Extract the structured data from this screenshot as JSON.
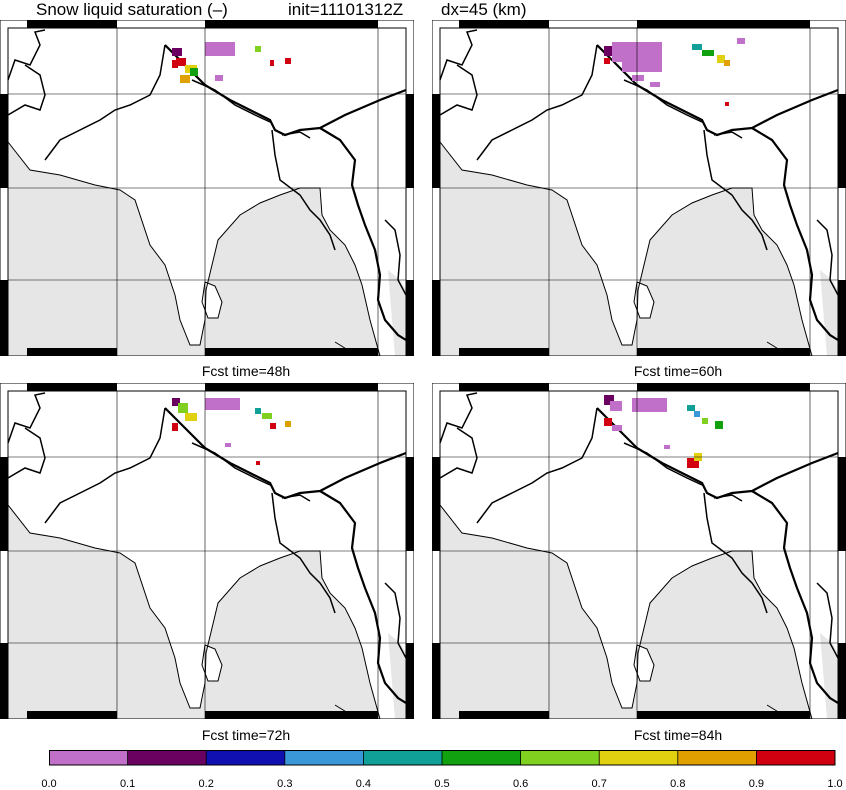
{
  "header": {
    "field": "Snow liquid saturation (–)",
    "init": "init=11101312Z",
    "dx": "dx=45 (km)"
  },
  "panels": [
    {
      "caption": "Fcst time=48h"
    },
    {
      "caption": "Fcst time=60h"
    },
    {
      "caption": "Fcst time=72h"
    },
    {
      "caption": "Fcst time=84h"
    }
  ],
  "colorbar": {
    "ticks": [
      "0.0",
      "0.1",
      "0.2",
      "0.3",
      "0.4",
      "0.5",
      "0.6",
      "0.7",
      "0.8",
      "0.9",
      "1.0"
    ],
    "colors": [
      "#c070c8",
      "#6a0060",
      "#1010b0",
      "#3a98d8",
      "#10a098",
      "#10a010",
      "#80d020",
      "#e0d010",
      "#e0a000",
      "#d00010"
    ]
  },
  "colors": {
    "land": "#ffffff",
    "ocean": "#e6e6e6",
    "border": "#000000",
    "grid": "#000000"
  }
}
